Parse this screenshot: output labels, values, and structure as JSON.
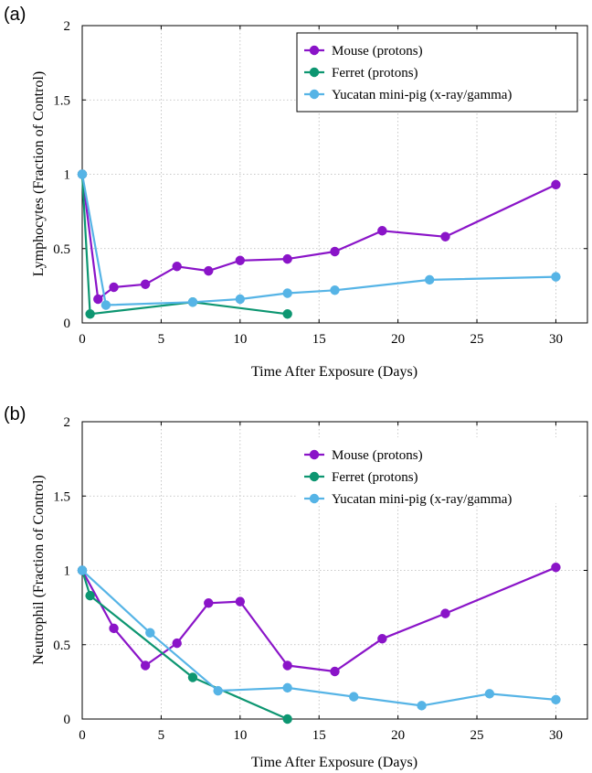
{
  "chart_data": [
    {
      "type": "line",
      "panel_label": "(a)",
      "xlabel": "Time After Exposure (Days)",
      "ylabel": "Lymphocytes (Fraction of Control)",
      "xlim": [
        0,
        32
      ],
      "ylim": [
        0,
        2
      ],
      "xticks": [
        "0",
        "5",
        "10",
        "15",
        "20",
        "25",
        "30"
      ],
      "yticks": [
        "0",
        "0.5",
        "1",
        "1.5",
        "2"
      ],
      "grid": true,
      "legend_position": "top-right",
      "series": [
        {
          "name": "Mouse (protons)",
          "color": "#8a14c8",
          "x": [
            0,
            1,
            2,
            4,
            6,
            8,
            10,
            13,
            16,
            19,
            23,
            30
          ],
          "y": [
            1.0,
            0.16,
            0.24,
            0.26,
            0.38,
            0.35,
            0.42,
            0.43,
            0.48,
            0.62,
            0.58,
            0.93
          ]
        },
        {
          "name": "Ferret (protons)",
          "color": "#0d9671",
          "x": [
            0,
            0.5,
            7,
            13
          ],
          "y": [
            1.0,
            0.06,
            0.14,
            0.06
          ]
        },
        {
          "name": "Yucatan mini-pig (x-ray/gamma)",
          "color": "#56b4e6",
          "x": [
            0,
            1.5,
            7,
            10,
            13,
            16,
            22,
            30
          ],
          "y": [
            1.0,
            0.12,
            0.14,
            0.16,
            0.2,
            0.22,
            0.29,
            0.31
          ]
        }
      ]
    },
    {
      "type": "line",
      "panel_label": "(b)",
      "xlabel": "Time After Exposure (Days)",
      "ylabel": "Neutrophil (Fraction of Control)",
      "xlim": [
        0,
        32
      ],
      "ylim": [
        0,
        2
      ],
      "xticks": [
        "0",
        "5",
        "10",
        "15",
        "20",
        "25",
        "30"
      ],
      "yticks": [
        "0",
        "0.5",
        "1",
        "1.5",
        "2"
      ],
      "grid": true,
      "legend_position": "top-right",
      "series": [
        {
          "name": "Mouse (protons)",
          "color": "#8a14c8",
          "x": [
            0,
            2,
            4,
            6,
            8,
            10,
            13,
            16,
            19,
            23,
            30
          ],
          "y": [
            1.0,
            0.61,
            0.36,
            0.51,
            0.78,
            0.79,
            0.36,
            0.32,
            0.54,
            0.71,
            1.02
          ]
        },
        {
          "name": "Ferret (protons)",
          "color": "#0d9671",
          "x": [
            0,
            0.5,
            7,
            13
          ],
          "y": [
            1.0,
            0.83,
            0.28,
            0.0
          ]
        },
        {
          "name": "Yucatan mini-pig (x-ray/gamma)",
          "color": "#56b4e6",
          "x": [
            0,
            4.3,
            8.6,
            13,
            17.2,
            21.5,
            25.8,
            30
          ],
          "y": [
            1.0,
            0.58,
            0.19,
            0.21,
            0.15,
            0.09,
            0.17,
            0.13
          ]
        }
      ]
    }
  ]
}
